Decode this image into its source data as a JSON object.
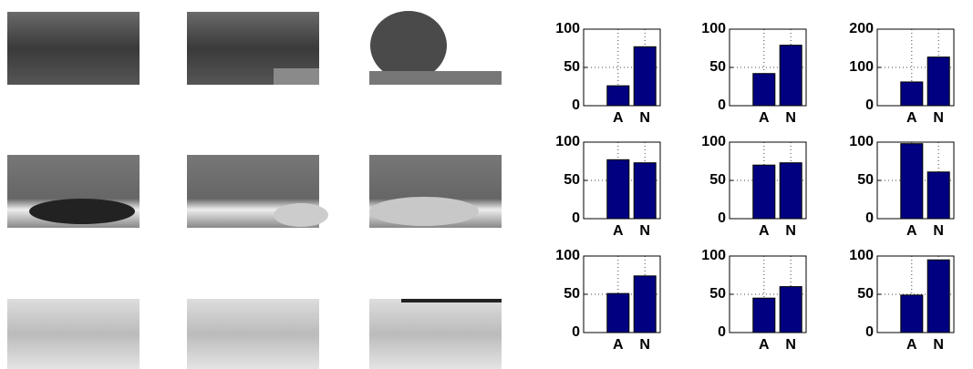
{
  "chart_data": [
    {
      "type": "bar",
      "categories": [
        "A",
        "N"
      ],
      "values": [
        26,
        77
      ],
      "color": "#000080",
      "ylim": [
        0,
        100
      ],
      "yticks": [
        0,
        50,
        100
      ],
      "grid": true
    },
    {
      "type": "bar",
      "categories": [
        "A",
        "N"
      ],
      "values": [
        42,
        79
      ],
      "color": "#000080",
      "ylim": [
        0,
        100
      ],
      "yticks": [
        0,
        50,
        100
      ],
      "grid": true
    },
    {
      "type": "bar",
      "categories": [
        "A",
        "N"
      ],
      "values": [
        62,
        127
      ],
      "color": "#000080",
      "ylim": [
        0,
        200
      ],
      "yticks": [
        0,
        100,
        200
      ],
      "grid": true
    },
    {
      "type": "bar",
      "categories": [
        "A",
        "N"
      ],
      "values": [
        77,
        73
      ],
      "color": "#000080",
      "ylim": [
        0,
        100
      ],
      "yticks": [
        0,
        50,
        100
      ],
      "grid": true
    },
    {
      "type": "bar",
      "categories": [
        "A",
        "N"
      ],
      "values": [
        70,
        73
      ],
      "color": "#000080",
      "ylim": [
        0,
        100
      ],
      "yticks": [
        0,
        50,
        100
      ],
      "grid": true
    },
    {
      "type": "bar",
      "categories": [
        "A",
        "N"
      ],
      "values": [
        98,
        61
      ],
      "color": "#000080",
      "ylim": [
        0,
        100
      ],
      "yticks": [
        0,
        50,
        100
      ],
      "grid": true
    },
    {
      "type": "bar",
      "categories": [
        "A",
        "N"
      ],
      "values": [
        51,
        74
      ],
      "color": "#000080",
      "ylim": [
        0,
        100
      ],
      "yticks": [
        0,
        50,
        100
      ],
      "grid": true
    },
    {
      "type": "bar",
      "categories": [
        "A",
        "N"
      ],
      "values": [
        45,
        60
      ],
      "color": "#000080",
      "ylim": [
        0,
        100
      ],
      "yticks": [
        0,
        50,
        100
      ],
      "grid": true
    },
    {
      "type": "bar",
      "categories": [
        "A",
        "N"
      ],
      "values": [
        49,
        95
      ],
      "color": "#000080",
      "ylim": [
        0,
        100
      ],
      "yticks": [
        0,
        50,
        100
      ],
      "grid": true
    }
  ]
}
